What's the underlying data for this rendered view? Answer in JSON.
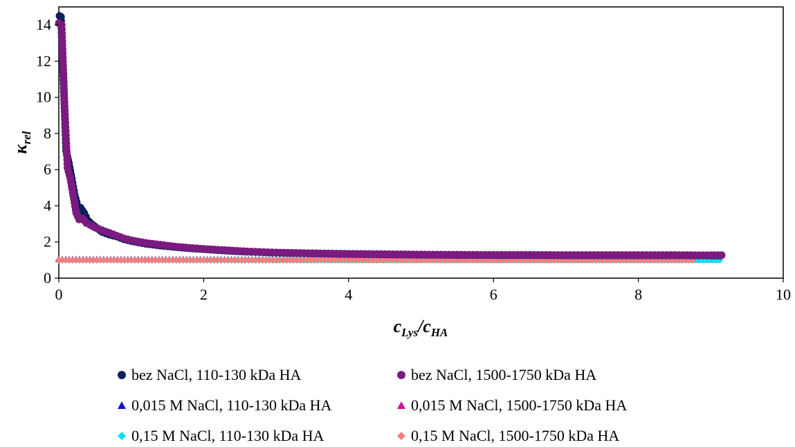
{
  "chart_data": {
    "type": "scatter",
    "xlim": [
      0,
      10
    ],
    "ylim": [
      0,
      15
    ],
    "xticks": [
      "0",
      "2",
      "4",
      "6",
      "8",
      "10"
    ],
    "yticks": [
      "0",
      "2",
      "4",
      "6",
      "8",
      "10",
      "12",
      "14"
    ],
    "xlabel": {
      "main": "c",
      "sub1": "Lys",
      "sep": "/c",
      "sub2": "HA"
    },
    "ylabel": {
      "main": "κ",
      "sub": "rel"
    },
    "grid": false,
    "legend_position": "bottom",
    "series": [
      {
        "name": "bez NaCl, 110-130 kDa HA",
        "marker": "circle",
        "color": "#0a1f5c",
        "points": [
          [
            0.01,
            14.5
          ],
          [
            0.03,
            14.45
          ],
          [
            0.07,
            10.3
          ],
          [
            0.1,
            7.05
          ],
          [
            0.14,
            6.35
          ],
          [
            0.18,
            5.5
          ],
          [
            0.22,
            4.6
          ],
          [
            0.26,
            4.0
          ],
          [
            0.3,
            3.9
          ],
          [
            0.35,
            3.6
          ],
          [
            0.4,
            3.2
          ],
          [
            0.45,
            3.0
          ],
          [
            0.5,
            2.85
          ],
          [
            0.6,
            2.55
          ],
          [
            0.7,
            2.4
          ],
          [
            0.8,
            2.3
          ],
          [
            0.9,
            2.15
          ],
          [
            1.0,
            2.05
          ],
          [
            1.2,
            1.9
          ],
          [
            1.4,
            1.8
          ],
          [
            1.6,
            1.72
          ],
          [
            1.8,
            1.65
          ],
          [
            2.0,
            1.6
          ],
          [
            2.3,
            1.52
          ],
          [
            2.6,
            1.46
          ],
          [
            3.0,
            1.4
          ],
          [
            3.5,
            1.36
          ],
          [
            4.0,
            1.33
          ],
          [
            4.5,
            1.31
          ],
          [
            5.0,
            1.29
          ],
          [
            5.5,
            1.28
          ],
          [
            6.0,
            1.27
          ],
          [
            6.5,
            1.27
          ],
          [
            7.0,
            1.26
          ],
          [
            7.5,
            1.26
          ],
          [
            8.0,
            1.26
          ],
          [
            8.5,
            1.26
          ],
          [
            9.0,
            1.25
          ],
          [
            9.13,
            1.25
          ]
        ]
      },
      {
        "name": "bez NaCl, 1500-1750 kDa HA",
        "marker": "circle",
        "color": "#7b1a80",
        "points": [
          [
            0.0,
            14.1
          ],
          [
            0.04,
            14.0
          ],
          [
            0.08,
            9.5
          ],
          [
            0.12,
            6.1
          ],
          [
            0.16,
            5.5
          ],
          [
            0.2,
            4.55
          ],
          [
            0.24,
            3.6
          ],
          [
            0.28,
            3.25
          ],
          [
            0.33,
            3.3
          ],
          [
            0.38,
            3.05
          ],
          [
            0.43,
            2.95
          ],
          [
            0.5,
            2.8
          ],
          [
            0.6,
            2.65
          ],
          [
            0.7,
            2.5
          ],
          [
            0.8,
            2.35
          ],
          [
            0.9,
            2.2
          ],
          [
            1.0,
            2.1
          ],
          [
            1.2,
            1.95
          ],
          [
            1.4,
            1.85
          ],
          [
            1.6,
            1.75
          ],
          [
            1.8,
            1.68
          ],
          [
            2.0,
            1.62
          ],
          [
            2.3,
            1.55
          ],
          [
            2.6,
            1.48
          ],
          [
            3.0,
            1.42
          ],
          [
            3.5,
            1.38
          ],
          [
            4.0,
            1.35
          ],
          [
            4.5,
            1.33
          ],
          [
            5.0,
            1.31
          ],
          [
            5.5,
            1.3
          ],
          [
            6.0,
            1.29
          ],
          [
            6.5,
            1.29
          ],
          [
            7.0,
            1.28
          ],
          [
            7.5,
            1.28
          ],
          [
            8.0,
            1.28
          ],
          [
            8.5,
            1.28
          ],
          [
            9.0,
            1.27
          ],
          [
            9.15,
            1.27
          ]
        ]
      },
      {
        "name": "0,015 M NaCl, 110-130 kDa HA",
        "marker": "triangle",
        "color": "#1010d0",
        "xrange": [
          0.0,
          9.1
        ],
        "y": [
          1.05,
          1.03
        ]
      },
      {
        "name": "0,015 M NaCl, 1500-1750 kDa HA",
        "marker": "triangle",
        "color": "#d0109a",
        "xrange": [
          0.0,
          9.1
        ],
        "y": [
          1.04,
          1.02
        ]
      },
      {
        "name": "0,15 M NaCl, 110-130 kDa HA",
        "marker": "diamond",
        "color": "#00e5ee",
        "xrange": [
          0.0,
          9.12
        ],
        "y": [
          1.0,
          1.0
        ]
      },
      {
        "name": "0,15 M NaCl, 1500-1750 kDa HA",
        "marker": "diamond",
        "color": "#f08080",
        "xrange": [
          0.0,
          8.75
        ],
        "y": [
          1.0,
          1.0
        ]
      }
    ]
  }
}
